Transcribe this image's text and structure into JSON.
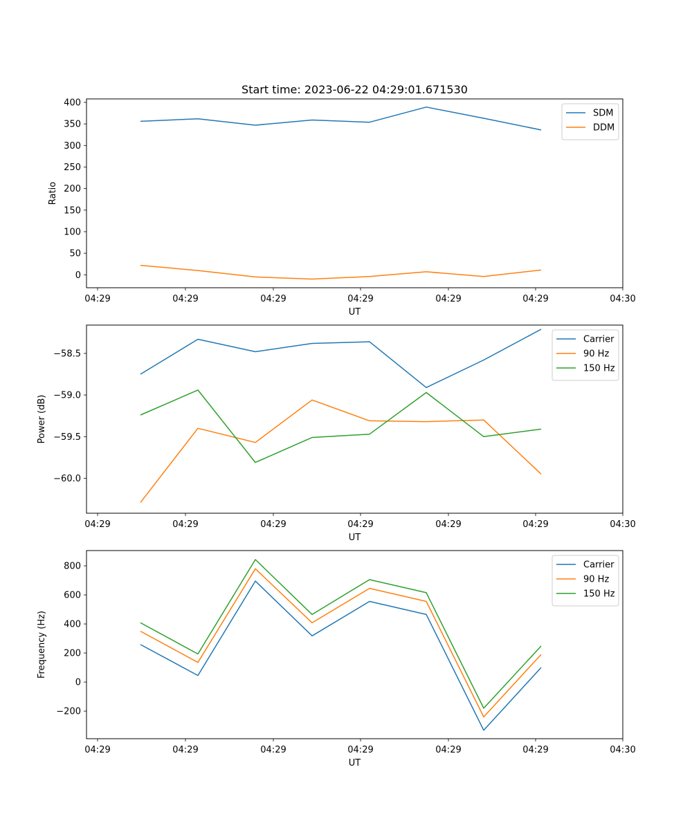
{
  "chart_data": [
    {
      "type": "line",
      "title": "Start time: 2023-06-22 04:29:01.671530",
      "xlabel": "UT",
      "ylabel": "Ratio",
      "x_tick_labels": [
        "04:29",
        "04:29",
        "04:29",
        "04:29",
        "04:29",
        "04:29",
        "04:30"
      ],
      "y_ticks": [
        0,
        50,
        100,
        150,
        200,
        250,
        300,
        350,
        400
      ],
      "y_tick_labels": [
        "0",
        "50",
        "100",
        "150",
        "200",
        "250",
        "300",
        "350",
        "400"
      ],
      "ylim": [
        -30,
        408
      ],
      "legend_position": "top-right",
      "series": [
        {
          "name": "SDM",
          "color": "#1f77b4",
          "values": [
            356,
            362,
            347,
            359,
            354,
            389,
            363,
            336
          ]
        },
        {
          "name": "DDM",
          "color": "#ff7f0e",
          "values": [
            22,
            10,
            -5,
            -10,
            -4,
            7,
            -4,
            11
          ]
        }
      ]
    },
    {
      "type": "line",
      "title": "",
      "xlabel": "UT",
      "ylabel": "Power (dB)",
      "x_tick_labels": [
        "04:29",
        "04:29",
        "04:29",
        "04:29",
        "04:29",
        "04:29",
        "04:30"
      ],
      "y_ticks": [
        -60.0,
        -59.5,
        -59.0,
        -58.5
      ],
      "y_tick_labels": [
        "−60.0",
        "−59.5",
        "−59.0",
        "−58.5"
      ],
      "ylim": [
        -60.42,
        -58.16
      ],
      "legend_position": "top-right",
      "series": [
        {
          "name": "Carrier",
          "color": "#1f77b4",
          "values": [
            -58.75,
            -58.33,
            -58.48,
            -58.38,
            -58.36,
            -58.91,
            -58.58,
            -58.21
          ]
        },
        {
          "name": "90 Hz",
          "color": "#ff7f0e",
          "values": [
            -60.29,
            -59.4,
            -59.57,
            -59.06,
            -59.31,
            -59.32,
            -59.3,
            -59.95
          ]
        },
        {
          "name": "150 Hz",
          "color": "#2ca02c",
          "values": [
            -59.24,
            -58.94,
            -59.81,
            -59.51,
            -59.47,
            -58.97,
            -59.5,
            -59.41
          ]
        }
      ]
    },
    {
      "type": "line",
      "title": "",
      "xlabel": "UT",
      "ylabel": "Frequency (Hz)",
      "x_tick_labels": [
        "04:29",
        "04:29",
        "04:29",
        "04:29",
        "04:29",
        "04:29",
        "04:30"
      ],
      "y_ticks": [
        -200,
        0,
        200,
        400,
        600,
        800
      ],
      "y_tick_labels": [
        "−200",
        "0",
        "200",
        "400",
        "600",
        "800"
      ],
      "ylim": [
        -390,
        905
      ],
      "legend_position": "top-right",
      "series": [
        {
          "name": "Carrier",
          "color": "#1f77b4",
          "values": [
            258,
            45,
            695,
            318,
            555,
            465,
            -332,
            100
          ]
        },
        {
          "name": "90 Hz",
          "color": "#ff7f0e",
          "values": [
            350,
            135,
            780,
            408,
            645,
            555,
            -240,
            190
          ]
        },
        {
          "name": "150 Hz",
          "color": "#2ca02c",
          "values": [
            408,
            193,
            843,
            465,
            705,
            615,
            -180,
            248
          ]
        }
      ]
    }
  ]
}
